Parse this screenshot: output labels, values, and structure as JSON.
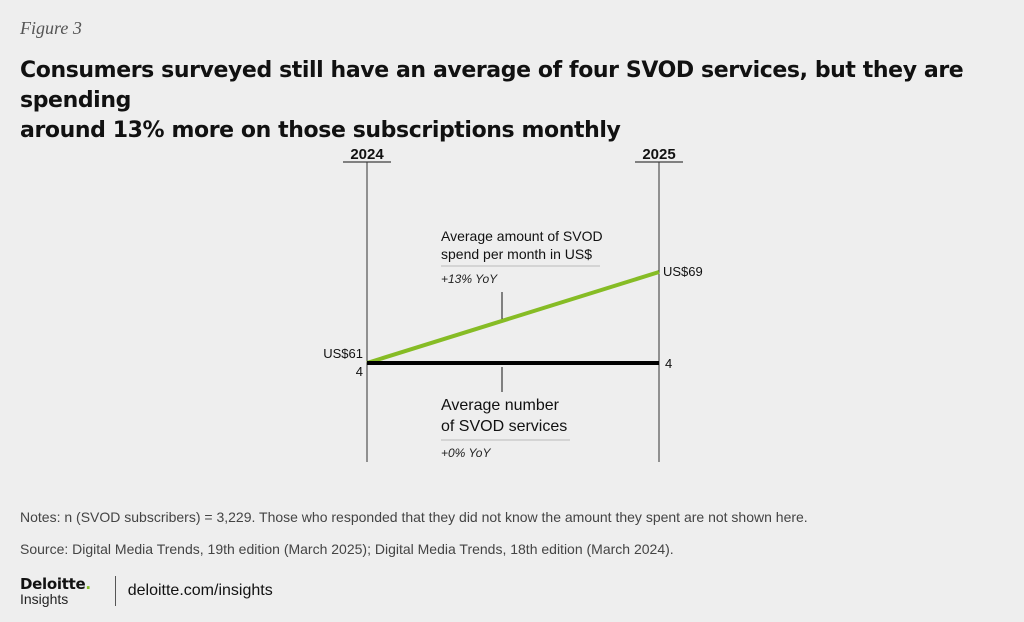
{
  "figure_label": "Figure 3",
  "title_lines": [
    "Consumers surveyed still have an average of four SVOD services, but they are spending",
    "around 13% more on those subscriptions monthly"
  ],
  "chart_data": {
    "type": "line",
    "x": [
      "2024",
      "2025"
    ],
    "series": [
      {
        "name": "Average amount of SVOD spend per month in US$",
        "name_lines": [
          "Average amount of SVOD",
          "spend per month in US$"
        ],
        "values": [
          61,
          69
        ],
        "value_labels": [
          "US$61",
          "US$69"
        ],
        "change": "+13% YoY",
        "color": "#86bc25"
      },
      {
        "name": "Average number of SVOD services",
        "name_lines": [
          "Average number",
          "of SVOD services"
        ],
        "values": [
          4,
          4
        ],
        "value_labels": [
          "4",
          "4"
        ],
        "change": "+0% YoY",
        "color": "#000000"
      }
    ]
  },
  "notes": "Notes: n (SVOD subscribers) = 3,229. Those who responded that they did not know the amount they spent are not shown here.",
  "source": "Source: Digital Media Trends, 19th edition (March 2025); Digital Media Trends, 18th edition (March 2024).",
  "brand": {
    "logo_name": "Deloitte",
    "logo_dot": ".",
    "logo_sub": "Insights",
    "url": "deloitte.com/insights"
  }
}
